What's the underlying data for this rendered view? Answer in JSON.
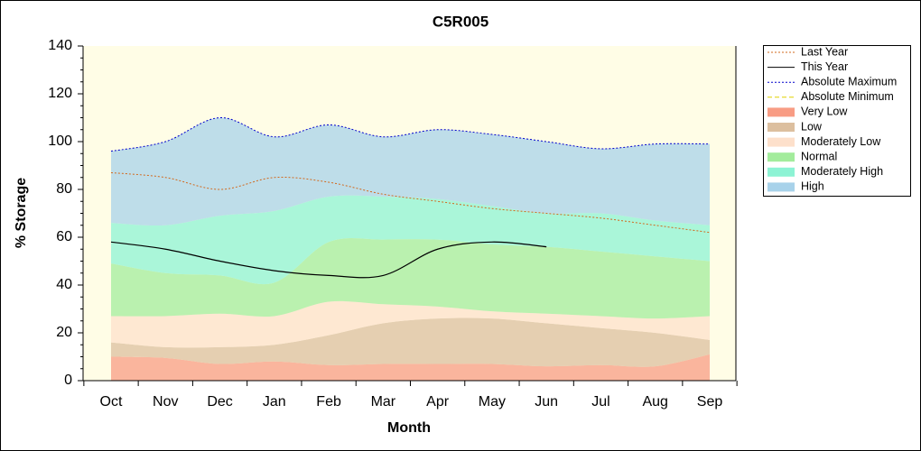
{
  "chart_data": {
    "type": "area",
    "title": "C5R005",
    "xlabel": "Month",
    "ylabel": "% Storage",
    "categories": [
      "Oct",
      "Nov",
      "Dec",
      "Jan",
      "Feb",
      "Mar",
      "Apr",
      "May",
      "Jun",
      "Jul",
      "Aug",
      "Sep"
    ],
    "ylim": [
      0,
      140
    ],
    "yticks": [
      0,
      20,
      40,
      60,
      80,
      100,
      120,
      140
    ],
    "legend": "right",
    "series": [
      {
        "name": "Last Year",
        "style": "line",
        "dash": "dotted",
        "color": "#d2691e",
        "values": [
          87,
          85,
          80,
          85,
          83,
          78,
          75,
          72,
          70,
          68,
          65,
          62
        ]
      },
      {
        "name": "This Year",
        "style": "line",
        "dash": "solid",
        "color": "#000000",
        "values": [
          58,
          55,
          50,
          46,
          44,
          44,
          55,
          58,
          56,
          null,
          null,
          null
        ]
      },
      {
        "name": "Absolute Maximum",
        "style": "line",
        "dash": "dotted",
        "color": "#0000cc",
        "values": [
          96,
          100,
          110,
          102,
          107,
          102,
          105,
          103,
          100,
          97,
          99,
          99
        ]
      },
      {
        "name": "Absolute Minimum",
        "style": "line",
        "dash": "dashed",
        "color": "#e0d000",
        "values": [
          null,
          null,
          null,
          null,
          null,
          null,
          null,
          null,
          null,
          null,
          null,
          null
        ]
      },
      {
        "name": "Very Low",
        "style": "area",
        "color": "#f89c84",
        "values": [
          10,
          9.5,
          7,
          8,
          6.5,
          7,
          7,
          7,
          6,
          6.5,
          6,
          11
        ]
      },
      {
        "name": "Low",
        "style": "area",
        "color": "#dcbf9f",
        "values": [
          6,
          4.5,
          7,
          7,
          12.5,
          17,
          19,
          19,
          18,
          15.5,
          14,
          6
        ]
      },
      {
        "name": "Moderately Low",
        "style": "area",
        "color": "#fde0cb",
        "values": [
          11,
          13,
          14,
          12,
          14,
          8,
          5,
          3,
          4,
          5,
          6,
          10
        ]
      },
      {
        "name": "Normal",
        "style": "area",
        "color": "#a3ec9c",
        "values": [
          22,
          18,
          16,
          14,
          25,
          27,
          28,
          28,
          28,
          27,
          26,
          23
        ]
      },
      {
        "name": "Moderately High",
        "style": "area",
        "color": "#8df3d4",
        "values": [
          17,
          20,
          25,
          30,
          19,
          18,
          17,
          16,
          14,
          16,
          15,
          15
        ]
      },
      {
        "name": "High",
        "style": "area",
        "color": "#a8d2ea",
        "values": [
          30,
          35,
          41,
          31,
          30,
          25,
          29,
          30,
          30,
          27,
          32,
          34
        ]
      }
    ]
  }
}
